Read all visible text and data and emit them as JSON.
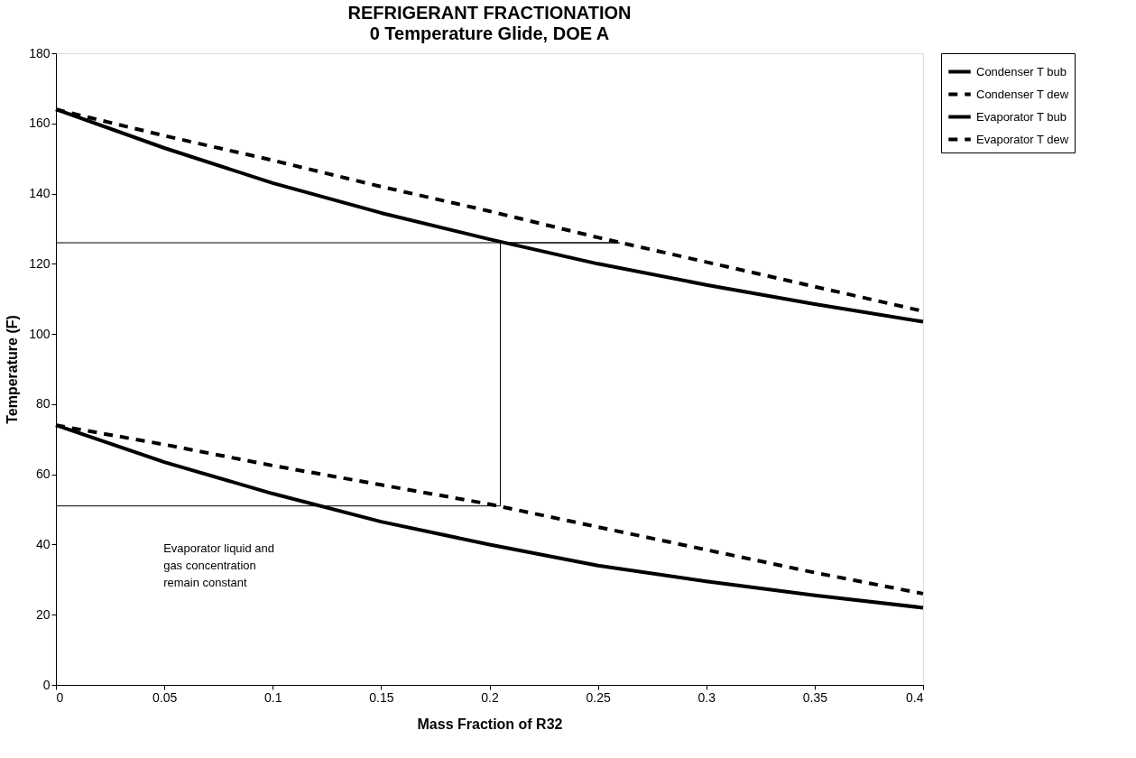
{
  "chart_data": {
    "type": "line",
    "title": "REFRIGERANT FRACTIONATION",
    "subtitle": "0 Temperature Glide, DOE A",
    "xlabel": "Mass Fraction of R32",
    "ylabel": "Temperature (F)",
    "x": [
      0,
      0.05,
      0.1,
      0.15,
      0.2,
      0.25,
      0.3,
      0.35,
      0.4
    ],
    "series": [
      {
        "name": "Condenser T bub",
        "color": "#000000",
        "line_style": "solid",
        "values": [
          164,
          153,
          143,
          134.5,
          127,
          120,
          114,
          108.5,
          103.5
        ]
      },
      {
        "name": "Condenser T dew",
        "color": "#000000",
        "line_style": "dashed",
        "values": [
          164,
          156.5,
          149.5,
          142,
          135,
          127.5,
          120.5,
          113.5,
          106.5
        ]
      },
      {
        "name": "Evaporator T bub",
        "color": "#000000",
        "line_style": "solid",
        "values": [
          74,
          63.5,
          54.5,
          46.5,
          40,
          34,
          29.5,
          25.5,
          22
        ]
      },
      {
        "name": "Evaporator T dew",
        "color": "#000000",
        "line_style": "dashed",
        "values": [
          74,
          68.5,
          62.5,
          57,
          51.5,
          45,
          38.5,
          32,
          26
        ]
      },
      {
        "color": "#000000",
        "line_style": "solid",
        "x": [
          0,
          0.26,
          0.205,
          0.205,
          0
        ],
        "values": [
          126,
          126,
          126,
          51,
          51
        ]
      }
    ],
    "annotations": [
      "Evaporator liquid and\ngas concentration\nremain constant"
    ],
    "xlim": [
      0,
      0.4
    ],
    "xticks": [
      0,
      0.05,
      0.1,
      0.15,
      0.2,
      0.25,
      0.3,
      0.35,
      0.4
    ],
    "ylim": [
      0,
      180
    ],
    "yticks": [
      0,
      20,
      40,
      60,
      80,
      100,
      120,
      140,
      160,
      180
    ],
    "grid": false,
    "legend": "right",
    "marker": "none"
  }
}
